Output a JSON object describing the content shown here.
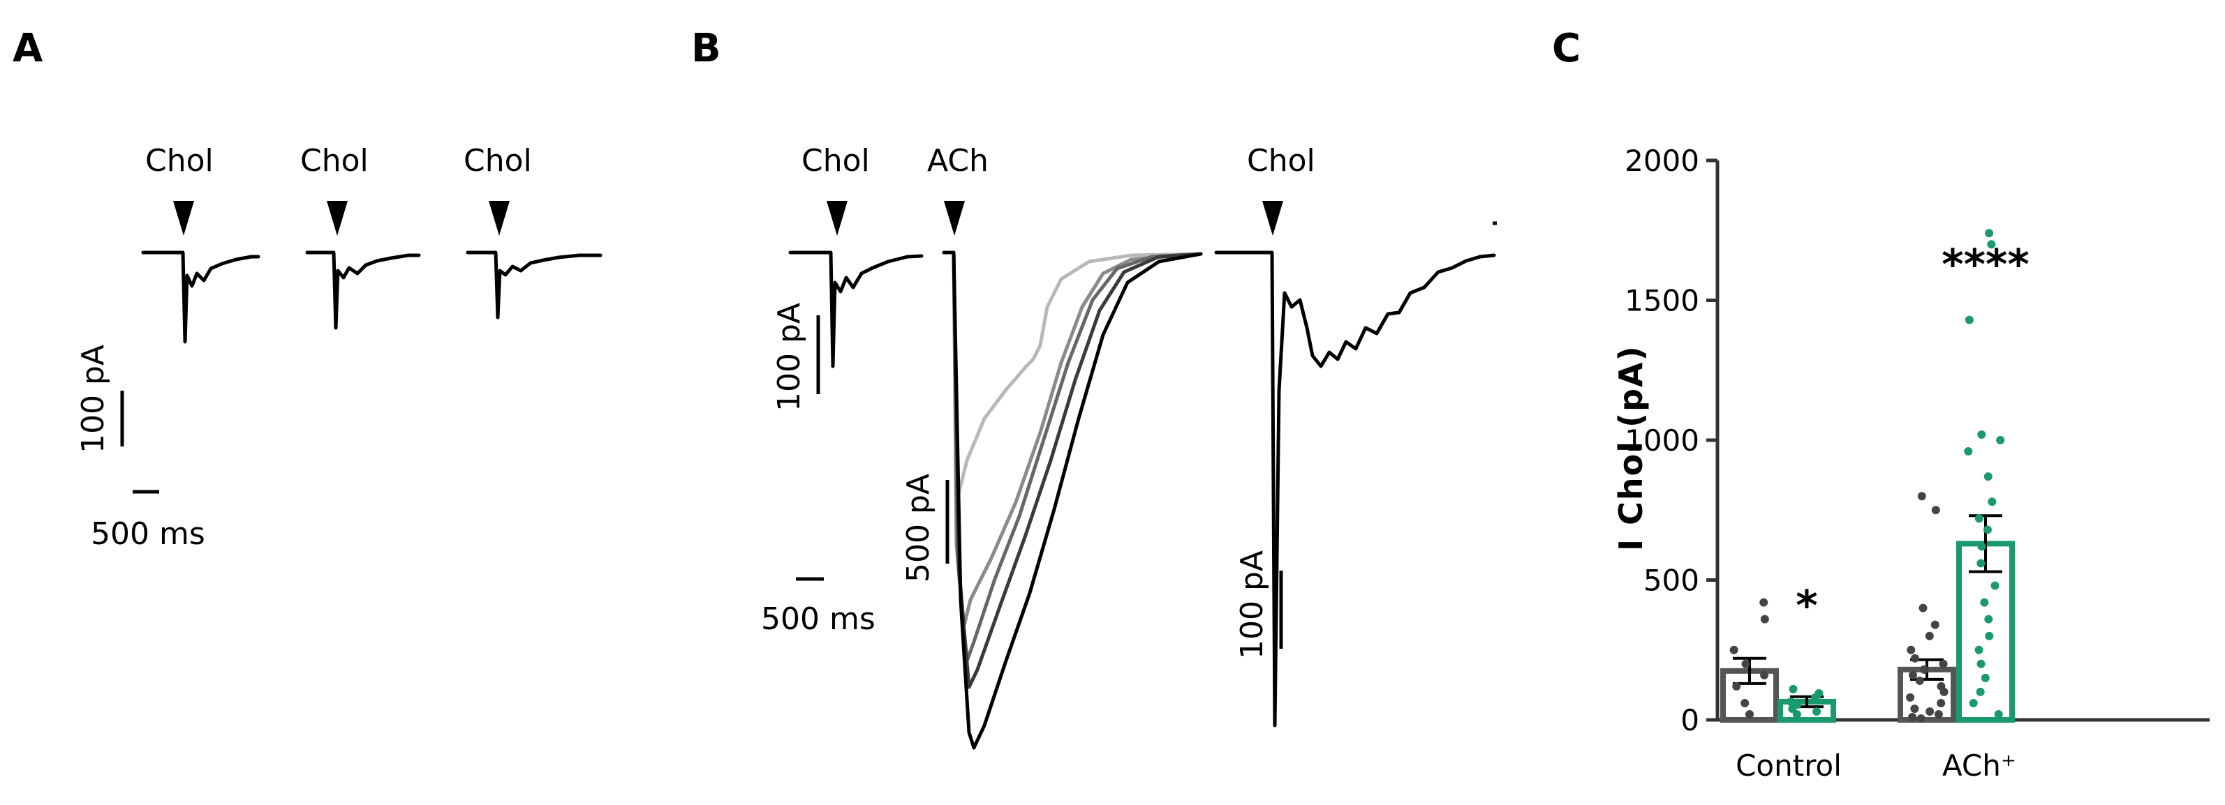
{
  "panels": {
    "A": {
      "label": "A",
      "stim_labels": [
        "Chol",
        "Chol",
        "Chol"
      ],
      "scale_current": "100 pA",
      "scale_time": "500 ms"
    },
    "B": {
      "label": "B",
      "stim_labels": [
        "Chol",
        "ACh",
        "Chol"
      ],
      "scale_current_1": "100 pA",
      "scale_current_2": "500 pA",
      "scale_current_3": "100 pA",
      "scale_time": "500 ms"
    },
    "C": {
      "label": "C"
    }
  },
  "colors": {
    "trace": "#000000",
    "bar_gray": "#555555",
    "green": "#1a9a6c",
    "ach_traces": [
      "#000000",
      "#3a3a3a",
      "#666666",
      "#8a8a8a",
      "#b8b8b8"
    ]
  },
  "chart_data": {
    "type": "bar",
    "ylabel": "I Chol (pA)",
    "ylim": [
      0,
      2000
    ],
    "yticks": [
      "0",
      "500",
      "1000",
      "1500",
      "2000"
    ],
    "categories": [
      "Control",
      "ACh⁺"
    ],
    "bars": [
      {
        "group": "Control",
        "color": "#555555",
        "mean": 175,
        "sem": 45,
        "points": [
          420,
          360,
          250,
          200,
          160,
          120,
          60,
          20
        ]
      },
      {
        "group": "Control",
        "color": "#1a9a6c",
        "mean": 65,
        "sem": 18,
        "significance": "*",
        "points": [
          110,
          95,
          80,
          65,
          55,
          40,
          30,
          20
        ]
      },
      {
        "group": "ACh⁺",
        "color": "#555555",
        "mean": 180,
        "sem": 35,
        "points": [
          800,
          750,
          400,
          340,
          300,
          250,
          220,
          200,
          180,
          160,
          140,
          120,
          100,
          80,
          60,
          40,
          30,
          20,
          10,
          5
        ]
      },
      {
        "group": "ACh⁺",
        "color": "#1a9a6c",
        "mean": 630,
        "sem": 100,
        "significance": "****",
        "points": [
          1740,
          1700,
          1430,
          1020,
          1000,
          960,
          870,
          780,
          720,
          680,
          620,
          560,
          480,
          420,
          360,
          300,
          250,
          200,
          150,
          100,
          60,
          20
        ]
      }
    ]
  }
}
